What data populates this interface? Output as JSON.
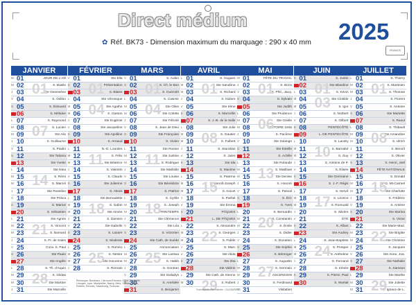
{
  "header": {
    "brand_title": "Direct médium",
    "ref_line": "Réf. BK73 - Dimension maximum du marquage : 290 x 40 mm",
    "ref_icon": "ribbon-logo-icon",
    "year": "2025",
    "ribbon_badge": "FRANCE"
  },
  "colors": {
    "primary": "#1f4e9c",
    "sunday": "#d0232a",
    "weekend_bg": "#e7e7e7",
    "week_number": "#d5d5d5"
  },
  "footer": {
    "note": "Remorque: Bordeaux, Clermont-Ferrand, Dijon, Grenoble, Limoges, Lyon, Montpellier, Nancy, Metz, Orléans-Tours, Poitiers, Rennes, Strasbourg, Toulouse",
    "legal": "Toute reproduction interdite - CALENDRIERS"
  },
  "months": [
    {
      "name": "JANVIER",
      "start_weekday": 2,
      "days": 31,
      "names": [
        "JOUR DE L'AN",
        "S. Basile",
        "Ste Geneviève",
        "S. Odilon",
        "S. Édouard",
        "S. Mélaine",
        "S. Raymond",
        "S. Lucien",
        "Ste Alix",
        "S. Guillaume",
        "S. Paulin",
        "Ste Tatiana",
        "Ste Yvette",
        "Ste Nina",
        "S. Rémi",
        "S. Marcel",
        "Ste Roseline",
        "Ste Prisca",
        "S. Marius",
        "S. Sébastien",
        "Ste Agnès",
        "S. Vincent",
        "S. Barnard",
        "S. Fr. de Sales",
        "Conv. S. Paul",
        "Ste Paule",
        "Ste Angèle",
        "S. Th. d'Aquin",
        "S. Gildas",
        "Ste Martine",
        "Ste Marcelle"
      ]
    },
    {
      "name": "FÉVRIER",
      "start_weekday": 5,
      "days": 28,
      "names": [
        "Ste Ella",
        "Présentation",
        "S. Blaise",
        "Ste Véronique",
        "Ste Agathe",
        "S. Gaston",
        "Ste Eugénie",
        "Ste Jacqueline",
        "Ste Apolline",
        "S. Arnaud",
        "N.-D. Lourdes",
        "S. Félix",
        "Ste Béatrice",
        "S. Valentin",
        "S. Claude",
        "Ste Julienne",
        "S. Alexis",
        "Ste Bernadette",
        "S. Gabin",
        "Ste Aimée",
        "S. Damien",
        "Ste Isabelle",
        "S. Lazare",
        "S. Modeste",
        "S. Roméo",
        "S. Nestor",
        "Ste Honorine",
        "S. Romain"
      ]
    },
    {
      "name": "MARS",
      "start_weekday": 5,
      "days": 31,
      "names": [
        "S. Aubin",
        "S. Ch. le Bon",
        "S. Guénolé",
        "S. Casimir",
        "Ste Olive",
        "Ste Colette",
        "Ste Félicité",
        "S. Jean de Dieu",
        "Ste Françoise",
        "S. Vivien",
        "Ste Rosine",
        "Ste Justine",
        "S. Rodrigue",
        "Ste Mathilde",
        "Ste Louise",
        "Ste Bénédicte",
        "S. Patrice",
        "S. Cyrille",
        "S. Joseph",
        "PRINTEMPS",
        "Ste Clémence",
        "Ste Léa",
        "S. Victorien",
        "Ste Cath. de Suède",
        "Annonciation",
        "Ste Larissa",
        "S. Habib",
        "S. Gontran",
        "Ste Gwladys",
        "S. Amédée",
        "S. Benjamin"
      ]
    },
    {
      "name": "AVRIL",
      "start_weekday": 1,
      "days": 30,
      "names": [
        "S. Hugues",
        "Ste Sandrine",
        "S. Richard",
        "S. Isidore",
        "Ste Irène",
        "S. Marcellin",
        "S. J.-B. de la Salle",
        "Ste Julie",
        "S. Gautier",
        "S. Fulbert",
        "S. Stanislas",
        "S. Jules",
        "Ste Ida",
        "S. Maxime",
        "S. Paterne",
        "S. Benoît-Joseph",
        "S. Anicet",
        "S. Parfait",
        "Ste Emma",
        "PÂQUES",
        "L. DE PÂQUES",
        "S. Alexandre",
        "S. Georges",
        "S. Fidèle",
        "S. Marc",
        "Ste Alida",
        "Ste Zita",
        "Ste Valérie",
        "Ste Cath. de Sienne",
        "S. Robert"
      ]
    },
    {
      "name": "MAI",
      "start_weekday": 3,
      "days": 31,
      "names": [
        "FÊTE DU TRAVAIL",
        "S. Boris",
        "S. Phil., Jacq.",
        "S. Sylvain",
        "Ste Judith",
        "Ste Prudence",
        "Ste Gisèle",
        "VICTOIRE 1945",
        "S. Pacôme",
        "Ste Solange",
        "Ste Estelle",
        "S. Achille",
        "Ste Rolande",
        "S. Matthias",
        "Ste Denise",
        "S. Honoré",
        "S. Pascal",
        "S. Éric",
        "S. Yves",
        "S. Bernardin",
        "S. Constantin",
        "S. Émile",
        "S. Didier",
        "S. Donatien",
        "Ste Sophie",
        "S. Bérenger",
        "S. Augustin",
        "S. Germain",
        "ASCENSION",
        "S. Ferdinand",
        "Visitation"
      ]
    },
    {
      "name": "JUIN",
      "start_weekday": 6,
      "days": 30,
      "names": [
        "S. Justin",
        "Ste Blandine",
        "S. Kévin",
        "Ste Clotilde",
        "S. Igor",
        "S. Norbert",
        "S. Gilbert",
        "PENTECÔTE",
        "L. DE PENTECÔTE",
        "S. Landry",
        "S. Barnabé",
        "S. Guy",
        "S. Antoine de P.",
        "S. Élisée",
        "Ste Germaine",
        "S. J.-F. Régis",
        "S. Hervé",
        "S. Léonce",
        "S. Romuald",
        "S. Silvère",
        "ÉTÉ",
        "S. Alban",
        "Ste Audrey",
        "S. Jean-Baptiste",
        "S. Prosper",
        "S. Anthelme",
        "S. Fernand",
        "S. Irénée",
        "S. Pierre, Paul",
        "S. Martial"
      ]
    },
    {
      "name": "JUILLET",
      "start_weekday": 1,
      "days": 31,
      "names": [
        "S. Thierry",
        "S. Martinien",
        "S. Thomas",
        "S. Florent",
        "S. Antoine",
        "Ste Mariette",
        "S. Raoul",
        "S. Thibault",
        "Ste Amandine",
        "S. Ulrich",
        "S. Benoît",
        "S. Olivier",
        "S. Henri, Joël",
        "FÊTE NATIONALE",
        "S. Donald",
        "N.-D. Mt-Carmel",
        "Ste Charlotte",
        "S. Frédéric",
        "S. Arsène",
        "Ste Marina",
        "S. Victor",
        "Ste Marie-Mad.",
        "Ste Brigitte",
        "Ste Christine",
        "S. Jacques",
        "Ste Anne, Joa.",
        "Ste Nathalie",
        "S. Samson",
        "Ste Marthe",
        "Ste Juliette",
        "S. Ignace de L."
      ]
    }
  ],
  "weekday_letters": [
    "D",
    "L",
    "M",
    "M",
    "J",
    "V",
    "S"
  ]
}
